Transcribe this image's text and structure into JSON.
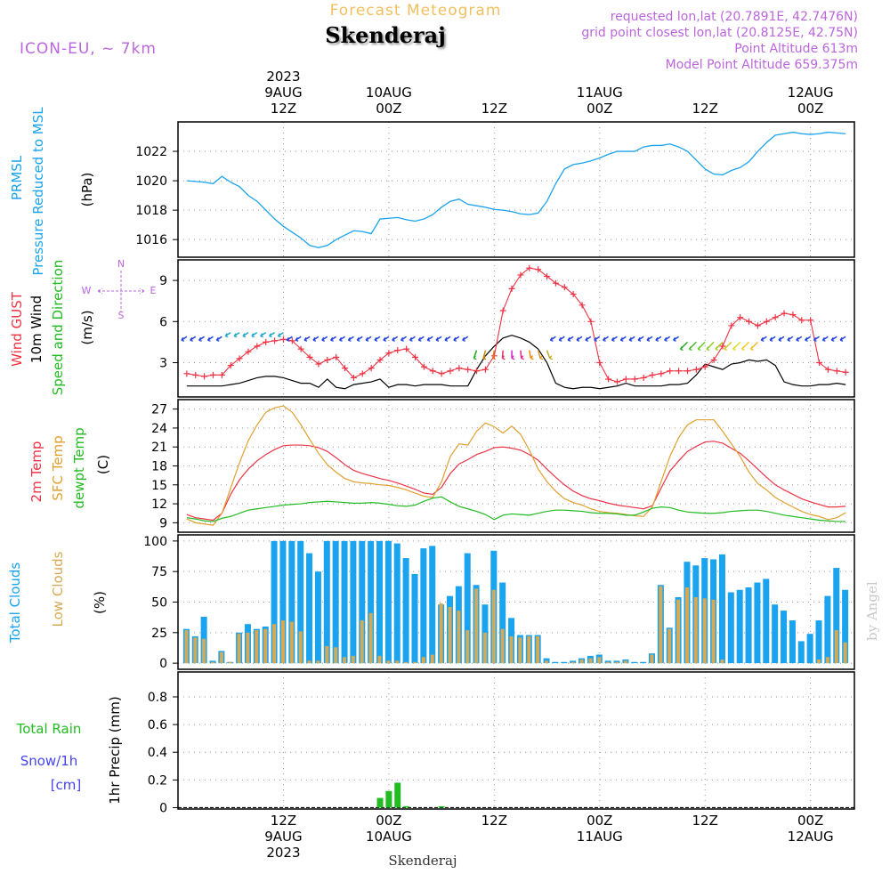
{
  "header": {
    "title": "Forecast Meteogram",
    "location": "Skenderaj",
    "model": "ICON-EU, ~ 7km",
    "requested": "requested lon,lat (20.7891E, 42.7476N)",
    "gridpoint": "grid point closest lon,lat (20.8125E, 42.75N)",
    "point_alt": "Point Altitude 613m",
    "model_alt": "Model Point Altitude 659.375m"
  },
  "footer": {
    "location": "Skenderaj",
    "credit": "by Angel"
  },
  "colors": {
    "pressure": "#1aa3ee",
    "gust": "#ee3344",
    "wind": "#000000",
    "windlabel": "#22bb22",
    "temp2m": "#ee3344",
    "sfc": "#e0a030",
    "dewpt": "#22bb22",
    "total_clouds": "#1aa3ee",
    "low_clouds": "#d6aa55",
    "rain": "#22bb22",
    "snow": "#4444ee",
    "header": "#bb66dd",
    "title": "#f0c060"
  },
  "time_axis": {
    "top_labels": [
      {
        "h": 12,
        "lines": [
          "2023",
          "9AUG",
          "12Z"
        ]
      },
      {
        "h": 24,
        "lines": [
          "10AUG",
          "00Z"
        ]
      },
      {
        "h": 36,
        "lines": [
          "12Z"
        ]
      },
      {
        "h": 48,
        "lines": [
          "11AUG",
          "00Z"
        ]
      },
      {
        "h": 60,
        "lines": [
          "12Z"
        ]
      },
      {
        "h": 72,
        "lines": [
          "12AUG",
          "00Z"
        ]
      }
    ],
    "bottom_labels": [
      {
        "h": 12,
        "lines": [
          "12Z",
          "9AUG",
          "2023"
        ]
      },
      {
        "h": 24,
        "lines": [
          "00Z",
          "10AUG"
        ]
      },
      {
        "h": 36,
        "lines": [
          "12Z"
        ]
      },
      {
        "h": 48,
        "lines": [
          "00Z",
          "11AUG"
        ]
      },
      {
        "h": 60,
        "lines": [
          "12Z"
        ]
      },
      {
        "h": 72,
        "lines": [
          "00Z",
          "12AUG"
        ]
      }
    ]
  },
  "chart_data": [
    {
      "type": "line",
      "panel": "pressure",
      "ylabel": [
        "PRMSL",
        "Pressure Reduced to MSL",
        "(hPa)"
      ],
      "ylim": [
        1014.8,
        1024.0
      ],
      "yticks": [
        1016,
        1018,
        1020,
        1022
      ],
      "grid": true,
      "x_hours": [
        1,
        2,
        3,
        4,
        5,
        6,
        7,
        8,
        9,
        10,
        11,
        12,
        13,
        14,
        15,
        16,
        17,
        18,
        19,
        20,
        21,
        22,
        23,
        24,
        25,
        26,
        27,
        28,
        29,
        30,
        31,
        32,
        33,
        34,
        35,
        36,
        37,
        38,
        39,
        40,
        41,
        42,
        43,
        44,
        45,
        46,
        47,
        48,
        49,
        50,
        51,
        52,
        53,
        54,
        55,
        56,
        57,
        58,
        59,
        60,
        61,
        62,
        63,
        64,
        65,
        66,
        67,
        68,
        69,
        70,
        71,
        72,
        73,
        74,
        75,
        76
      ],
      "series": [
        {
          "values": [
            1020.0,
            1019.95,
            1019.9,
            1019.8,
            1020.3,
            1019.9,
            1019.6,
            1019.0,
            1018.6,
            1018.0,
            1017.4,
            1016.9,
            1016.5,
            1016.1,
            1015.6,
            1015.45,
            1015.6,
            1016.0,
            1016.3,
            1016.6,
            1016.55,
            1016.4,
            1017.4,
            1017.45,
            1017.5,
            1017.35,
            1017.25,
            1017.4,
            1017.7,
            1018.2,
            1018.6,
            1018.75,
            1018.4,
            1018.3,
            1018.2,
            1018.05,
            1018.0,
            1017.9,
            1017.75,
            1017.7,
            1017.8,
            1018.6,
            1019.8,
            1020.8,
            1021.1,
            1021.2,
            1021.35,
            1021.55,
            1021.8,
            1022.0,
            1022.0,
            1022.0,
            1022.3,
            1022.4,
            1022.4,
            1022.5,
            1022.3,
            1022.0,
            1021.4,
            1020.8,
            1020.45,
            1020.4,
            1020.7,
            1020.9,
            1021.3,
            1022.0,
            1022.6,
            1023.1,
            1023.2,
            1023.3,
            1023.2,
            1023.15,
            1023.2,
            1023.3,
            1023.25,
            1023.2
          ]
        }
      ]
    },
    {
      "type": "line",
      "panel": "wind",
      "ylabel": [
        "Wind GUST",
        "10m Wind",
        "Speed and Direction",
        "(m/s)"
      ],
      "compass": [
        "N",
        "W",
        "E",
        "S"
      ],
      "ylim": [
        0.5,
        10.5
      ],
      "yticks": [
        3,
        6,
        9
      ],
      "grid": true,
      "x_hours": [
        1,
        2,
        3,
        4,
        5,
        6,
        7,
        8,
        9,
        10,
        11,
        12,
        13,
        14,
        15,
        16,
        17,
        18,
        19,
        20,
        21,
        22,
        23,
        24,
        25,
        26,
        27,
        28,
        29,
        30,
        31,
        32,
        33,
        34,
        35,
        36,
        37,
        38,
        39,
        40,
        41,
        42,
        43,
        44,
        45,
        46,
        47,
        48,
        49,
        50,
        51,
        52,
        53,
        54,
        55,
        56,
        57,
        58,
        59,
        60,
        61,
        62,
        63,
        64,
        65,
        66,
        67,
        68,
        69,
        70,
        71,
        72,
        73,
        74,
        75,
        76
      ],
      "series": [
        {
          "name": "Wind GUST",
          "values": [
            2.2,
            2.1,
            2.0,
            2.1,
            2.1,
            2.8,
            3.3,
            3.8,
            4.2,
            4.5,
            4.6,
            4.7,
            4.6,
            4.0,
            3.4,
            2.9,
            3.2,
            3.4,
            2.6,
            1.9,
            2.2,
            2.6,
            3.2,
            3.7,
            3.9,
            4.0,
            3.4,
            2.7,
            2.4,
            2.2,
            2.4,
            2.6,
            2.5,
            2.4,
            2.5,
            3.5,
            6.8,
            8.4,
            9.4,
            9.9,
            9.8,
            9.3,
            8.8,
            8.5,
            8.0,
            7.2,
            6.0,
            3.0,
            1.8,
            1.6,
            1.8,
            1.8,
            1.9,
            2.1,
            2.2,
            2.4,
            2.4,
            2.4,
            2.5,
            2.7,
            3.2,
            4.2,
            5.7,
            6.3,
            6.0,
            5.7,
            6.0,
            6.3,
            6.6,
            6.5,
            6.1,
            6.1,
            3.0,
            2.5,
            2.4,
            2.3
          ]
        },
        {
          "name": "10m Wind",
          "values": [
            1.3,
            1.3,
            1.3,
            1.3,
            1.3,
            1.4,
            1.5,
            1.7,
            1.9,
            2.0,
            2.0,
            1.9,
            1.7,
            1.5,
            1.5,
            1.2,
            1.8,
            1.2,
            1.1,
            1.4,
            1.5,
            1.6,
            1.8,
            1.2,
            1.4,
            1.4,
            1.3,
            1.4,
            1.4,
            1.4,
            1.3,
            1.3,
            1.3,
            2.5,
            3.5,
            4.2,
            4.8,
            5.0,
            4.8,
            4.5,
            4.0,
            3.0,
            1.5,
            1.2,
            1.1,
            1.2,
            1.2,
            1.1,
            1.2,
            1.3,
            1.5,
            1.3,
            1.3,
            1.3,
            1.3,
            1.4,
            1.4,
            1.5,
            2.1,
            2.9,
            2.7,
            2.5,
            2.9,
            3.0,
            3.2,
            3.1,
            3.2,
            2.8,
            1.6,
            1.4,
            1.3,
            1.3,
            1.4,
            1.4,
            1.5,
            1.4
          ]
        }
      ]
    },
    {
      "type": "line",
      "panel": "temperature",
      "ylabel": [
        "2m Temp",
        "SFC Temp",
        "dewpt Temp",
        "(C)"
      ],
      "ylim": [
        7.5,
        28.5
      ],
      "yticks": [
        9,
        12,
        15,
        18,
        21,
        24,
        27
      ],
      "grid": true,
      "x_hours": [
        1,
        2,
        3,
        4,
        5,
        6,
        7,
        8,
        9,
        10,
        11,
        12,
        13,
        14,
        15,
        16,
        17,
        18,
        19,
        20,
        21,
        22,
        23,
        24,
        25,
        26,
        27,
        28,
        29,
        30,
        31,
        32,
        33,
        34,
        35,
        36,
        37,
        38,
        39,
        40,
        41,
        42,
        43,
        44,
        45,
        46,
        47,
        48,
        49,
        50,
        51,
        52,
        53,
        54,
        55,
        56,
        57,
        58,
        59,
        60,
        61,
        62,
        63,
        64,
        65,
        66,
        67,
        68,
        69,
        70,
        71,
        72,
        73,
        74,
        75,
        76
      ],
      "series": [
        {
          "name": "2m Temp",
          "values": [
            10.3,
            9.8,
            9.6,
            9.4,
            10.5,
            13.5,
            15.8,
            17.5,
            18.8,
            19.8,
            20.6,
            21.2,
            21.3,
            21.3,
            21.2,
            20.9,
            20.3,
            19.3,
            18.2,
            17.3,
            16.8,
            16.4,
            16.0,
            15.7,
            15.3,
            14.8,
            14.3,
            13.7,
            13.5,
            14.6,
            16.8,
            18.3,
            19.0,
            19.8,
            20.3,
            20.9,
            21.0,
            20.8,
            20.5,
            19.8,
            18.9,
            17.5,
            16.2,
            15.0,
            14.0,
            13.3,
            12.8,
            12.5,
            12.1,
            11.8,
            11.6,
            11.4,
            11.2,
            11.7,
            14.5,
            17.2,
            18.8,
            20.3,
            21.1,
            21.8,
            21.9,
            21.6,
            20.8,
            20.0,
            18.8,
            17.5,
            16.2,
            15.0,
            14.2,
            13.5,
            12.8,
            12.3,
            11.9,
            11.5,
            11.5,
            11.6
          ]
        },
        {
          "name": "SFC Temp",
          "values": [
            9.6,
            9.0,
            8.8,
            8.6,
            10.5,
            14.5,
            18.5,
            22.0,
            24.5,
            26.5,
            27.2,
            27.5,
            26.5,
            24.5,
            22.2,
            20.0,
            18.2,
            17.0,
            16.0,
            15.5,
            15.3,
            15.2,
            15.0,
            14.9,
            14.6,
            14.2,
            13.7,
            13.2,
            13.0,
            15.5,
            19.5,
            21.5,
            21.3,
            23.5,
            24.8,
            24.2,
            23.2,
            24.3,
            23.0,
            20.5,
            17.5,
            15.5,
            14.0,
            12.8,
            12.2,
            11.8,
            11.2,
            10.8,
            10.6,
            10.5,
            10.3,
            10.1,
            10.0,
            11.5,
            15.5,
            19.5,
            22.5,
            24.5,
            25.3,
            25.3,
            25.3,
            23.5,
            21.5,
            19.5,
            17.0,
            15.2,
            14.2,
            13.0,
            12.2,
            11.5,
            10.8,
            10.3,
            10.0,
            9.5,
            9.8,
            10.6
          ]
        },
        {
          "name": "dewpt Temp",
          "values": [
            9.8,
            9.6,
            9.3,
            9.2,
            9.7,
            10.0,
            10.5,
            11.0,
            11.2,
            11.4,
            11.6,
            11.8,
            11.9,
            12.0,
            12.2,
            12.3,
            12.4,
            12.3,
            12.2,
            12.1,
            12.1,
            12.2,
            12.1,
            11.9,
            11.7,
            11.6,
            11.8,
            12.4,
            12.9,
            13.1,
            12.3,
            11.6,
            11.2,
            10.8,
            10.3,
            9.5,
            10.2,
            10.4,
            10.3,
            10.2,
            10.5,
            10.8,
            11.0,
            11.0,
            10.9,
            10.8,
            10.6,
            10.5,
            10.5,
            10.4,
            10.2,
            10.2,
            10.7,
            11.3,
            11.5,
            11.4,
            11.0,
            10.7,
            10.6,
            10.5,
            10.5,
            10.6,
            10.8,
            10.9,
            11.0,
            11.0,
            10.8,
            10.5,
            10.2,
            10.0,
            9.8,
            9.6,
            9.4,
            9.3,
            9.2,
            9.2
          ]
        }
      ]
    },
    {
      "type": "bar",
      "panel": "clouds",
      "ylabel": [
        "Total Clouds",
        "Low Clouds",
        "(%)"
      ],
      "ylim": [
        -5,
        105
      ],
      "yticks": [
        0,
        25,
        50,
        75,
        100
      ],
      "grid": true,
      "x_hours": [
        1,
        2,
        3,
        4,
        5,
        6,
        7,
        8,
        9,
        10,
        11,
        12,
        13,
        14,
        15,
        16,
        17,
        18,
        19,
        20,
        21,
        22,
        23,
        24,
        25,
        26,
        27,
        28,
        29,
        30,
        31,
        32,
        33,
        34,
        35,
        36,
        37,
        38,
        39,
        40,
        41,
        42,
        43,
        44,
        45,
        46,
        47,
        48,
        49,
        50,
        51,
        52,
        53,
        54,
        55,
        56,
        57,
        58,
        59,
        60,
        61,
        62,
        63,
        64,
        65,
        66,
        67,
        68,
        69,
        70,
        71,
        72,
        73,
        74,
        75,
        76
      ],
      "series": [
        {
          "name": "Total Clouds",
          "values": [
            28,
            22,
            38,
            2,
            10,
            1,
            25,
            32,
            28,
            30,
            100,
            100,
            100,
            100,
            90,
            75,
            100,
            100,
            100,
            100,
            100,
            100,
            100,
            100,
            98,
            86,
            73,
            94,
            96,
            48,
            55,
            63,
            90,
            64,
            48,
            92,
            66,
            37,
            23,
            23,
            23,
            4,
            1,
            1,
            2,
            4,
            6,
            7,
            2,
            2,
            3,
            1,
            1,
            8,
            64,
            29,
            54,
            83,
            80,
            86,
            85,
            89,
            58,
            60,
            62,
            66,
            69,
            48,
            43,
            35,
            18,
            24,
            35,
            55,
            78,
            60
          ]
        },
        {
          "name": "Low Clouds",
          "values": [
            27,
            21,
            20,
            1,
            9,
            1,
            24,
            25,
            27,
            28,
            32,
            35,
            34,
            26,
            2,
            2,
            14,
            13,
            5,
            6,
            35,
            41,
            6,
            2,
            2,
            1,
            1,
            5,
            7,
            49,
            46,
            43,
            27,
            61,
            25,
            60,
            28,
            22,
            21,
            22,
            22,
            2,
            0,
            0,
            1,
            3,
            4,
            5,
            1,
            1,
            2,
            0,
            0,
            7,
            63,
            28,
            52,
            62,
            54,
            53,
            52,
            3,
            0,
            0,
            0,
            0,
            0,
            0,
            0,
            0,
            0,
            0,
            3,
            5,
            27,
            17
          ]
        }
      ]
    },
    {
      "type": "bar",
      "panel": "precip",
      "ylabel": [
        "Total Rain",
        "Snow/1h",
        "[cm]",
        "1hr Precip (mm)"
      ],
      "ylim": [
        -0.01,
        0.98
      ],
      "yticks": [
        0,
        0.2,
        0.4,
        0.6,
        0.8
      ],
      "grid": true,
      "x_hours": [
        23,
        24,
        25,
        26,
        30
      ],
      "series": [
        {
          "name": "Total Rain",
          "values": [
            0.07,
            0.12,
            0.18,
            0.01,
            0.01
          ]
        }
      ]
    }
  ]
}
